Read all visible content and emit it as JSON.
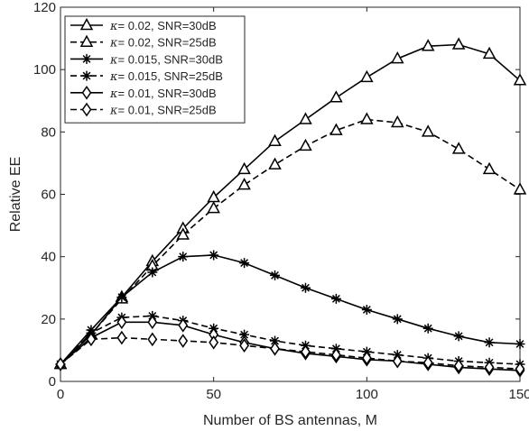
{
  "chart_data": {
    "type": "line",
    "title": "",
    "xlabel": "Number of BS antennas, M",
    "ylabel": "Relative EE",
    "xlim": [
      0,
      150
    ],
    "ylim": [
      0,
      120
    ],
    "xticks": [
      0,
      50,
      100,
      150
    ],
    "yticks": [
      0,
      20,
      40,
      60,
      80,
      100,
      120
    ],
    "grid": false,
    "legend_position": "top-left",
    "x": [
      0,
      10,
      20,
      30,
      40,
      50,
      60,
      70,
      80,
      90,
      100,
      110,
      120,
      130,
      140,
      150
    ],
    "series": [
      {
        "name": "= 0.02, SNR=30dB",
        "kappa": "0.02",
        "snr": "30dB",
        "line": "solid",
        "marker": "triangle",
        "color": "#000000",
        "values": [
          5.5,
          15,
          27,
          38.5,
          49,
          59,
          68,
          77,
          84,
          91,
          97.5,
          103.5,
          107.5,
          108,
          105,
          96.5
        ]
      },
      {
        "name": "= 0.02, SNR=25dB",
        "kappa": "0.02",
        "snr": "25dB",
        "line": "dashed",
        "marker": "triangle",
        "color": "#000000",
        "values": [
          5.5,
          15,
          26.5,
          37,
          47,
          55.5,
          63,
          69.5,
          75.5,
          80.5,
          84,
          83,
          80,
          74.5,
          68,
          61.5
        ]
      },
      {
        "name": "= 0.015, SNR=30dB",
        "kappa": "0.015",
        "snr": "30dB",
        "line": "solid",
        "marker": "asterisk",
        "color": "#000000",
        "values": [
          5.5,
          16.5,
          27,
          35,
          40,
          40.5,
          38,
          34,
          30,
          26.5,
          23,
          20,
          17,
          14.5,
          12.5,
          12
        ]
      },
      {
        "name": "= 0.015, SNR=25dB",
        "kappa": "0.015",
        "snr": "25dB",
        "line": "dashed",
        "marker": "asterisk",
        "color": "#000000",
        "values": [
          5.5,
          15.5,
          20.5,
          21,
          19.5,
          17,
          15,
          13,
          11.5,
          10.5,
          9.5,
          8.5,
          7.5,
          6.5,
          6,
          5.5
        ]
      },
      {
        "name": "= 0.01, SNR=30dB",
        "kappa": "0.01",
        "snr": "30dB",
        "line": "solid",
        "marker": "diamond",
        "color": "#000000",
        "values": [
          5.5,
          14,
          19,
          19,
          18,
          15,
          12.5,
          10.5,
          9,
          8,
          7,
          6.5,
          5.5,
          4.5,
          4,
          3.5
        ]
      },
      {
        "name": "= 0.01, SNR=25dB",
        "kappa": "0.01",
        "snr": "25dB",
        "line": "dashed",
        "marker": "diamond",
        "color": "#000000",
        "values": [
          5.5,
          13.5,
          14,
          13.5,
          13,
          12.5,
          11.5,
          10.5,
          9.5,
          8.5,
          7.5,
          6.5,
          6,
          5,
          4.5,
          4
        ]
      }
    ]
  }
}
